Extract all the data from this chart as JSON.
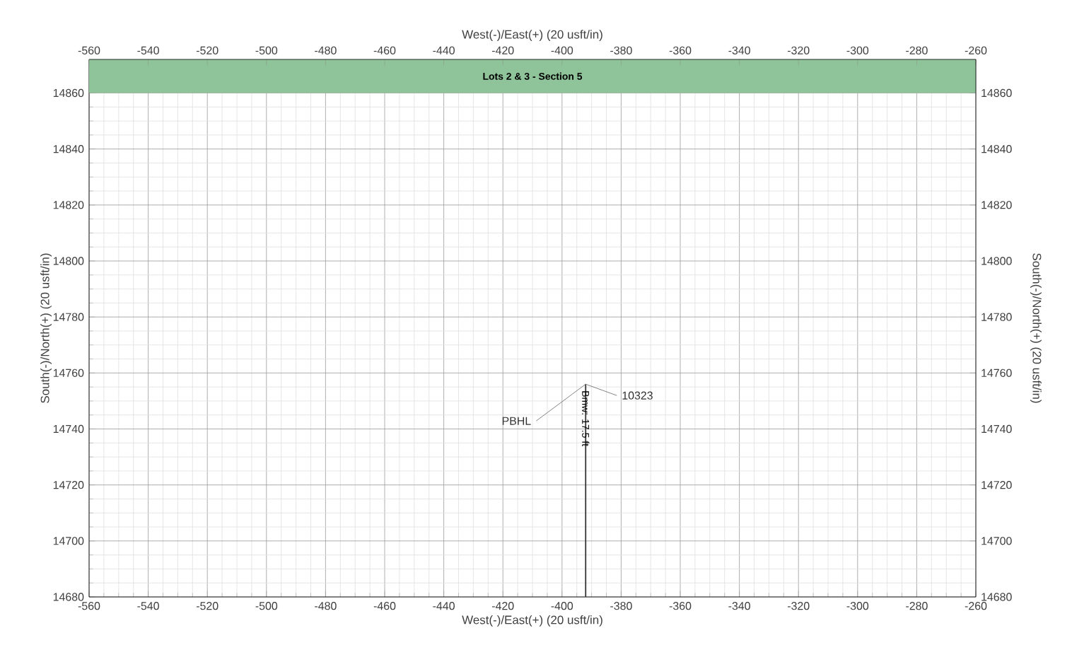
{
  "chart_data": {
    "type": "line",
    "xlabel": "West(-)/East(+) (20 usft/in)",
    "x2label": "West(-)/East(+) (20 usft/in)",
    "ylabel": "South(-)/North(+) (20 usft/in)",
    "y2label": "South(-)/North(+) (20 usft/in)",
    "xlim": [
      -560,
      -260
    ],
    "xticks": [
      -560,
      -540,
      -520,
      -500,
      -480,
      -460,
      -440,
      -420,
      -400,
      -380,
      -360,
      -340,
      -320,
      -300,
      -280,
      -260
    ],
    "x2lim": [
      -560,
      -260
    ],
    "x2ticks": [
      -560,
      -540,
      -520,
      -500,
      -480,
      -460,
      -440,
      -420,
      -400,
      -380,
      -360,
      -340,
      -320,
      -300,
      -280,
      -260
    ],
    "ylim": [
      14680,
      14872
    ],
    "yticks": [
      14680,
      14700,
      14720,
      14740,
      14760,
      14780,
      14800,
      14820,
      14840,
      14860
    ],
    "y2lim": [
      14680,
      14872
    ],
    "y2ticks": [
      14680,
      14700,
      14720,
      14740,
      14760,
      14780,
      14800,
      14820,
      14840,
      14860
    ],
    "grid": true,
    "marker": "none",
    "line_style": "solid",
    "series": [
      {
        "color": "#333333",
        "x": [
          -392,
          -392
        ],
        "values": [
          14680,
          14756
        ]
      }
    ],
    "bands": [
      {
        "axis": "y",
        "from": 14860,
        "to": 14872,
        "label": "Lots 2 & 3 - Section 5",
        "color": "#8fc49a"
      }
    ],
    "annotations": [
      {
        "text": "PBHL",
        "x": -392,
        "y": 14756
      },
      {
        "text": "10323",
        "x": -392,
        "y": 14756
      },
      "Bmw: 17.5 ft"
    ]
  }
}
